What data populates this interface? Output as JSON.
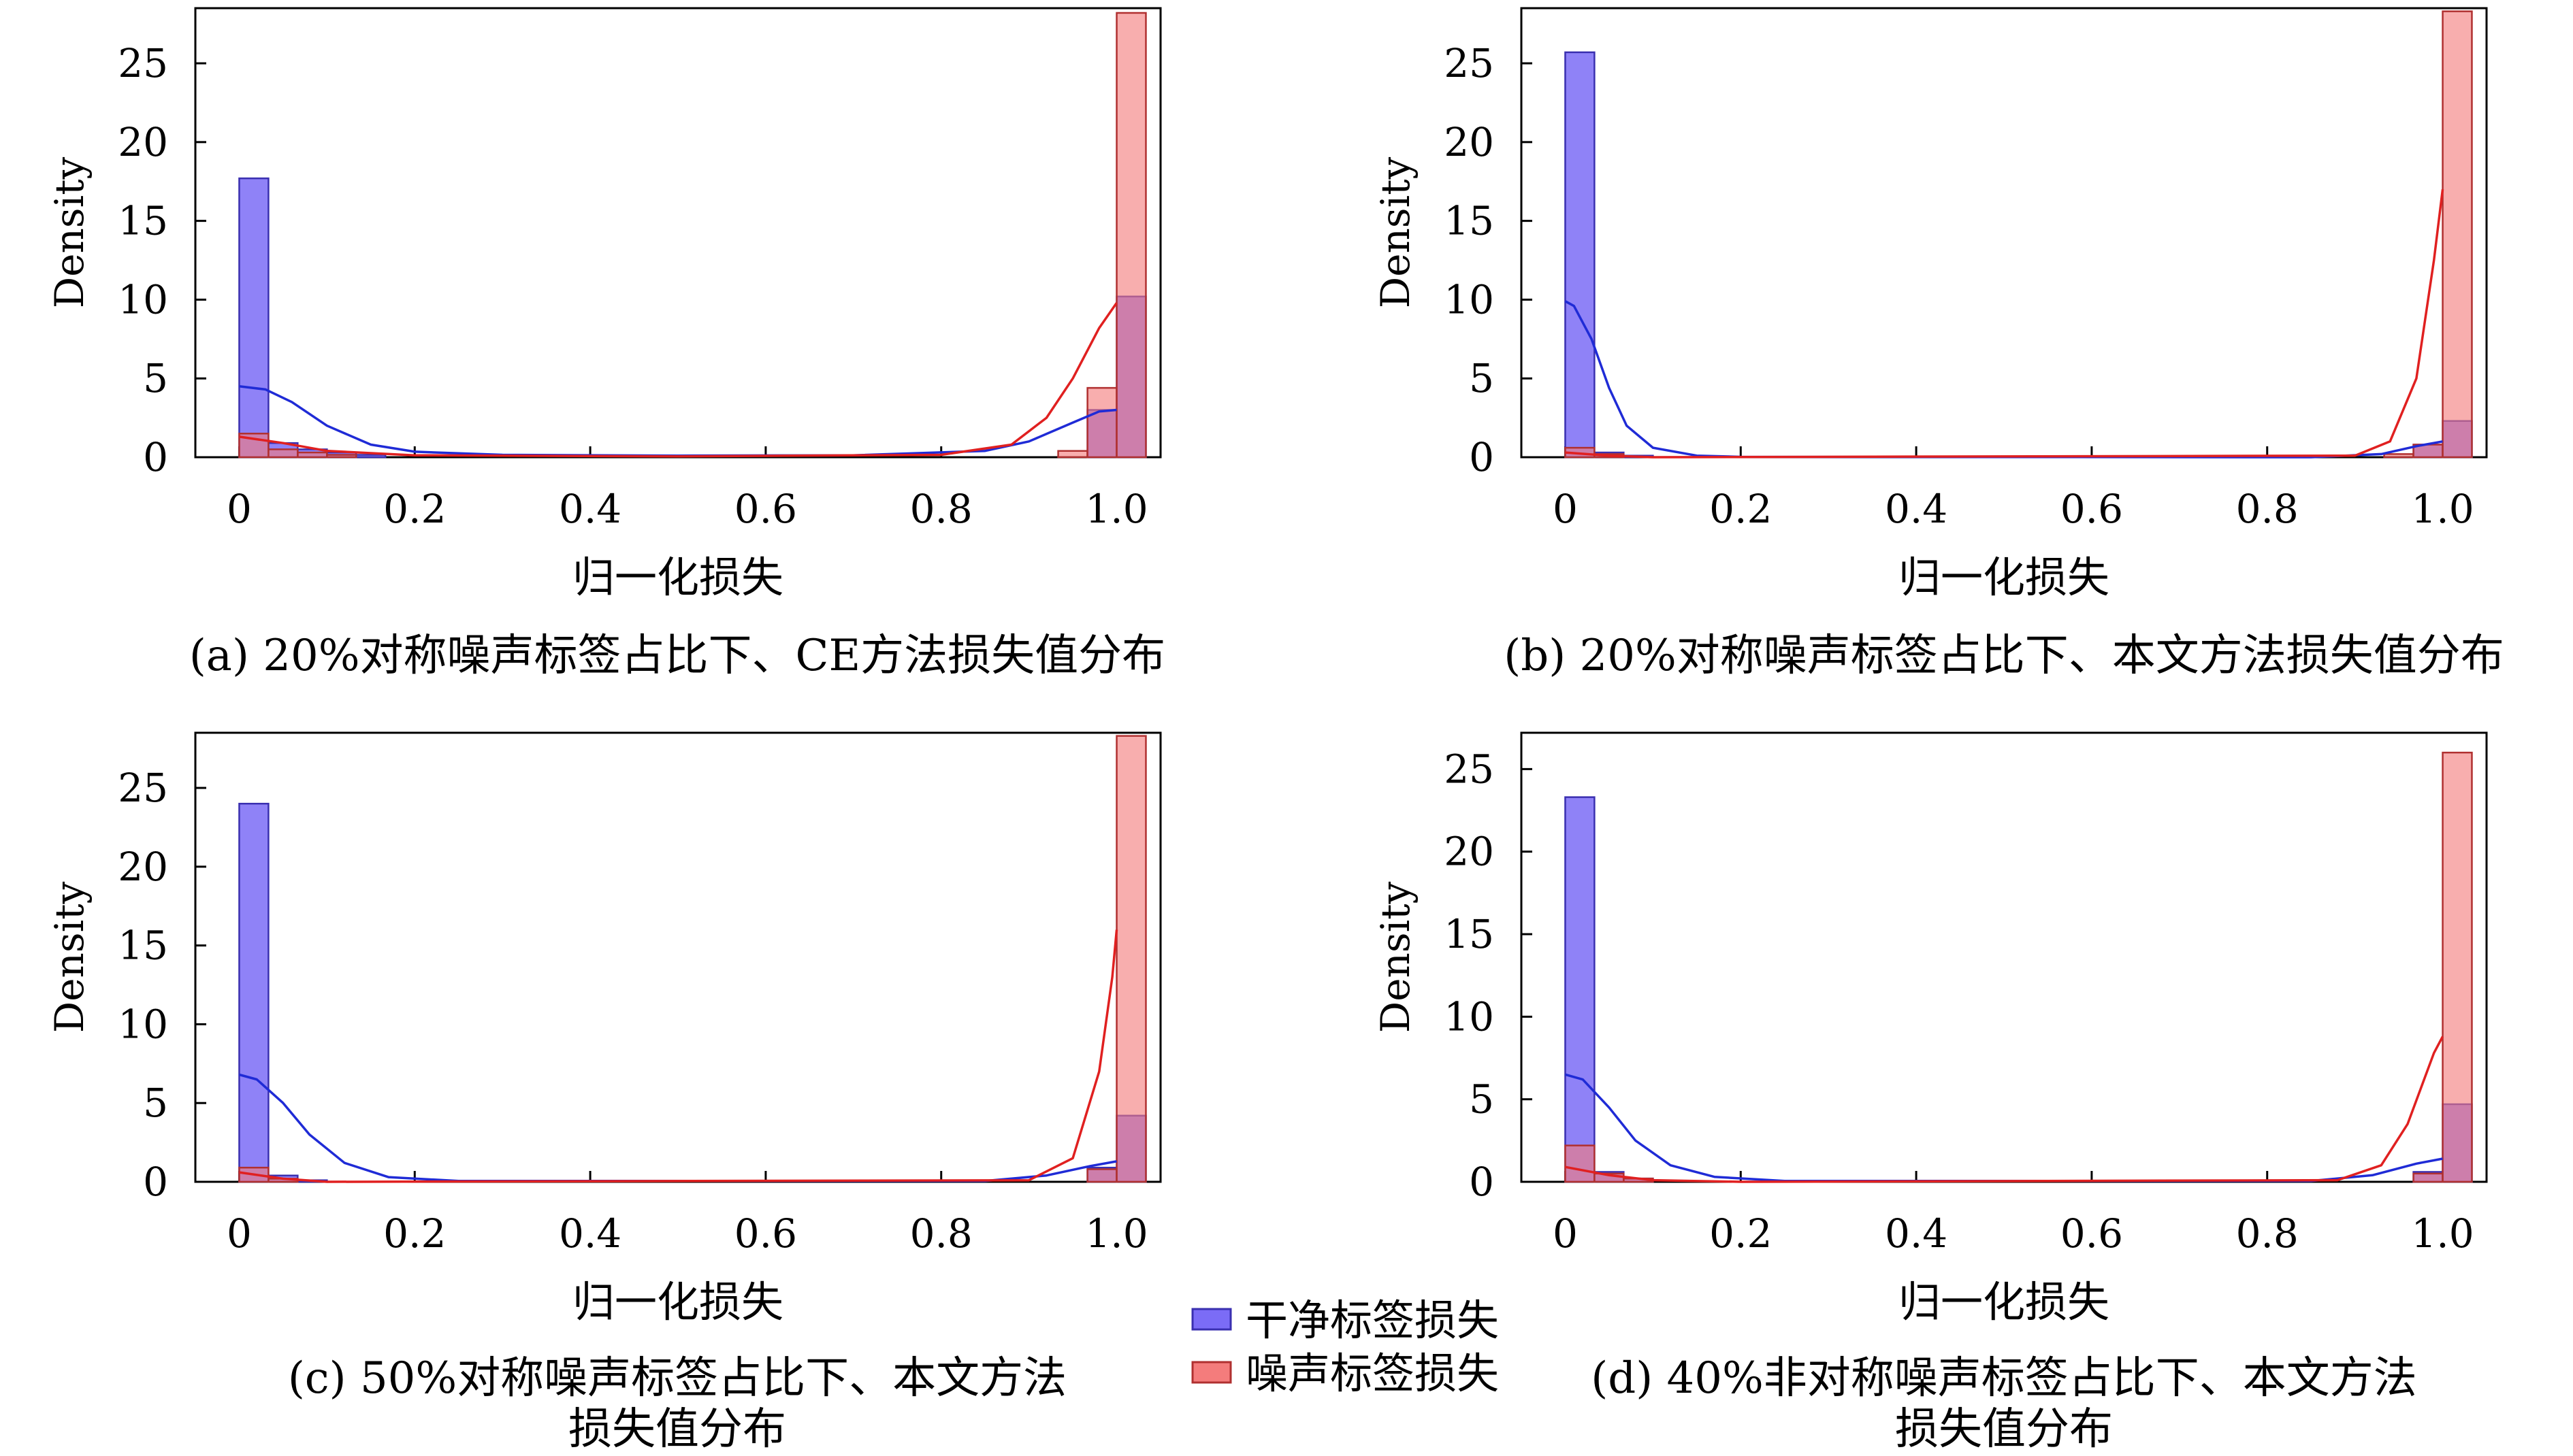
{
  "legend": {
    "placement": "bottom-center",
    "items": [
      {
        "label": "干净标签损失",
        "color": "#7b6cf6"
      },
      {
        "label": "噪声标签损失",
        "color": "#f47c7c"
      }
    ]
  },
  "colors": {
    "clean_fill": "#7b6cf6",
    "clean_edge": "#3a2fb0",
    "clean_kde": "#1f2bd6",
    "noisy_fill": "#f47c7c",
    "noisy_edge": "#b03030",
    "noisy_kde": "#e02020",
    "overlap_fill": "#a03a6a"
  },
  "chart_data": [
    {
      "type": "bar",
      "subtype": "histogram-with-kde",
      "panel": "a",
      "caption_lines": [
        "(a) 20%对称噪声标签占比下、CE方法损失值分布"
      ],
      "xlabel": "归一化损失",
      "ylabel": "Density",
      "xlim": [
        -0.05,
        1.05
      ],
      "ylim": [
        0,
        28.5
      ],
      "xticks": [
        0,
        0.2,
        0.4,
        0.6,
        0.8,
        1.0
      ],
      "xtick_labels": [
        "0",
        "0.2",
        "0.4",
        "0.6",
        "0.8",
        "1.0"
      ],
      "yticks": [
        0,
        5,
        10,
        15,
        20,
        25
      ],
      "ytick_labels": [
        "0",
        "5",
        "10",
        "15",
        "20",
        "25"
      ],
      "bin_width": 0.0333,
      "series": [
        {
          "name": "干净标签损失",
          "kde_color": "#1f2bd6",
          "bins": [
            [
              0.0,
              17.7
            ],
            [
              0.0333,
              0.9
            ],
            [
              0.0667,
              0.5
            ],
            [
              0.1,
              0.3
            ],
            [
              0.1333,
              0.15
            ],
            [
              0.9667,
              3.0
            ],
            [
              1.0,
              10.2
            ]
          ],
          "kde": [
            [
              0,
              4.5
            ],
            [
              0.03,
              4.3
            ],
            [
              0.06,
              3.5
            ],
            [
              0.1,
              2.0
            ],
            [
              0.15,
              0.8
            ],
            [
              0.2,
              0.35
            ],
            [
              0.3,
              0.15
            ],
            [
              0.5,
              0.1
            ],
            [
              0.7,
              0.12
            ],
            [
              0.85,
              0.4
            ],
            [
              0.9,
              1.0
            ],
            [
              0.95,
              2.2
            ],
            [
              0.98,
              2.9
            ],
            [
              1.0,
              3.0
            ]
          ]
        },
        {
          "name": "噪声标签损失",
          "kde_color": "#e02020",
          "bins": [
            [
              0.0,
              1.5
            ],
            [
              0.0333,
              0.5
            ],
            [
              0.0667,
              0.3
            ],
            [
              0.1,
              0.15
            ],
            [
              0.9333,
              0.4
            ],
            [
              0.9667,
              4.4
            ],
            [
              1.0,
              28.2
            ]
          ],
          "kde": [
            [
              0,
              1.3
            ],
            [
              0.05,
              0.9
            ],
            [
              0.1,
              0.4
            ],
            [
              0.2,
              0.12
            ],
            [
              0.5,
              0.05
            ],
            [
              0.8,
              0.15
            ],
            [
              0.88,
              0.8
            ],
            [
              0.92,
              2.5
            ],
            [
              0.95,
              5.0
            ],
            [
              0.98,
              8.2
            ],
            [
              1.0,
              9.8
            ]
          ]
        }
      ]
    },
    {
      "type": "bar",
      "subtype": "histogram-with-kde",
      "panel": "b",
      "caption_lines": [
        "(b) 20%对称噪声标签占比下、本文方法损失值分布"
      ],
      "xlabel": "归一化损失",
      "ylabel": "Density",
      "xlim": [
        -0.05,
        1.05
      ],
      "ylim": [
        0,
        28.5
      ],
      "xticks": [
        0,
        0.2,
        0.4,
        0.6,
        0.8,
        1.0
      ],
      "xtick_labels": [
        "0",
        "0.2",
        "0.4",
        "0.6",
        "0.8",
        "1.0"
      ],
      "yticks": [
        0,
        5,
        10,
        15,
        20,
        25
      ],
      "ytick_labels": [
        "0",
        "5",
        "10",
        "15",
        "20",
        "25"
      ],
      "bin_width": 0.0333,
      "series": [
        {
          "name": "干净标签损失",
          "kde_color": "#1f2bd6",
          "bins": [
            [
              0.0,
              25.7
            ],
            [
              0.0333,
              0.3
            ],
            [
              0.0667,
              0.1
            ],
            [
              0.9667,
              0.8
            ],
            [
              1.0,
              2.3
            ]
          ],
          "kde": [
            [
              0,
              9.9
            ],
            [
              0.01,
              9.6
            ],
            [
              0.03,
              7.5
            ],
            [
              0.05,
              4.4
            ],
            [
              0.07,
              2.0
            ],
            [
              0.1,
              0.6
            ],
            [
              0.15,
              0.1
            ],
            [
              0.2,
              0.02
            ],
            [
              0.85,
              0.0
            ],
            [
              0.93,
              0.2
            ],
            [
              0.97,
              0.7
            ],
            [
              1.0,
              1.0
            ]
          ]
        },
        {
          "name": "噪声标签损失",
          "kde_color": "#e02020",
          "bins": [
            [
              0.0,
              0.6
            ],
            [
              0.0333,
              0.2
            ],
            [
              0.9333,
              0.2
            ],
            [
              0.9667,
              0.8
            ],
            [
              1.0,
              28.3
            ]
          ],
          "kde": [
            [
              0,
              0.3
            ],
            [
              0.05,
              0.1
            ],
            [
              0.1,
              0.0
            ],
            [
              0.9,
              0.1
            ],
            [
              0.94,
              1.0
            ],
            [
              0.97,
              5.0
            ],
            [
              0.99,
              12.5
            ],
            [
              1.0,
              17.0
            ]
          ]
        }
      ]
    },
    {
      "type": "bar",
      "subtype": "histogram-with-kde",
      "panel": "c",
      "caption_lines": [
        "(c) 50%对称噪声标签占比下、本文方法",
        "损失值分布"
      ],
      "xlabel": "归一化损失",
      "ylabel": "Density",
      "xlim": [
        -0.05,
        1.05
      ],
      "ylim": [
        0,
        28.5
      ],
      "xticks": [
        0,
        0.2,
        0.4,
        0.6,
        0.8,
        1.0
      ],
      "xtick_labels": [
        "0",
        "0.2",
        "0.4",
        "0.6",
        "0.8",
        "1.0"
      ],
      "yticks": [
        0,
        5,
        10,
        15,
        20,
        25
      ],
      "ytick_labels": [
        "0",
        "5",
        "10",
        "15",
        "20",
        "25"
      ],
      "bin_width": 0.0333,
      "series": [
        {
          "name": "干净标签损失",
          "kde_color": "#1f2bd6",
          "bins": [
            [
              0.0,
              24.0
            ],
            [
              0.0333,
              0.4
            ],
            [
              0.0667,
              0.1
            ],
            [
              0.9667,
              0.9
            ],
            [
              1.0,
              4.2
            ]
          ],
          "kde": [
            [
              0,
              6.8
            ],
            [
              0.02,
              6.5
            ],
            [
              0.05,
              5.0
            ],
            [
              0.08,
              3.0
            ],
            [
              0.12,
              1.2
            ],
            [
              0.17,
              0.3
            ],
            [
              0.25,
              0.05
            ],
            [
              0.85,
              0.05
            ],
            [
              0.92,
              0.4
            ],
            [
              0.97,
              1.0
            ],
            [
              1.0,
              1.3
            ]
          ]
        },
        {
          "name": "噪声标签损失",
          "kde_color": "#e02020",
          "bins": [
            [
              0.0,
              0.9
            ],
            [
              0.0333,
              0.2
            ],
            [
              0.9667,
              0.8
            ],
            [
              1.0,
              28.3
            ]
          ],
          "kde": [
            [
              0,
              0.6
            ],
            [
              0.05,
              0.2
            ],
            [
              0.1,
              0.0
            ],
            [
              0.9,
              0.1
            ],
            [
              0.95,
              1.5
            ],
            [
              0.98,
              7.0
            ],
            [
              0.995,
              13.0
            ],
            [
              1.0,
              16.0
            ]
          ]
        }
      ]
    },
    {
      "type": "bar",
      "subtype": "histogram-with-kde",
      "panel": "d",
      "caption_lines": [
        "(d) 40%非对称噪声标签占比下、本文方法",
        "损失值分布"
      ],
      "xlabel": "归一化损失",
      "ylabel": "Density",
      "xlim": [
        -0.05,
        1.05
      ],
      "ylim": [
        0,
        27.2
      ],
      "xticks": [
        0,
        0.2,
        0.4,
        0.6,
        0.8,
        1.0
      ],
      "xtick_labels": [
        "0",
        "0.2",
        "0.4",
        "0.6",
        "0.8",
        "1.0"
      ],
      "yticks": [
        0,
        5,
        10,
        15,
        20,
        25
      ],
      "ytick_labels": [
        "0",
        "5",
        "10",
        "15",
        "20",
        "25"
      ],
      "bin_width": 0.0333,
      "series": [
        {
          "name": "干净标签损失",
          "kde_color": "#1f2bd6",
          "bins": [
            [
              0.0,
              23.3
            ],
            [
              0.0333,
              0.6
            ],
            [
              0.0667,
              0.2
            ],
            [
              0.9667,
              0.6
            ],
            [
              1.0,
              4.7
            ]
          ],
          "kde": [
            [
              0,
              6.5
            ],
            [
              0.02,
              6.2
            ],
            [
              0.05,
              4.5
            ],
            [
              0.08,
              2.5
            ],
            [
              0.12,
              1.0
            ],
            [
              0.17,
              0.3
            ],
            [
              0.25,
              0.05
            ],
            [
              0.85,
              0.05
            ],
            [
              0.92,
              0.4
            ],
            [
              0.97,
              1.1
            ],
            [
              1.0,
              1.4
            ]
          ]
        },
        {
          "name": "噪声标签损失",
          "kde_color": "#e02020",
          "bins": [
            [
              0.0,
              2.2
            ],
            [
              0.0333,
              0.5
            ],
            [
              0.0667,
              0.2
            ],
            [
              0.9667,
              0.5
            ],
            [
              1.0,
              26.0
            ]
          ],
          "kde": [
            [
              0,
              0.9
            ],
            [
              0.05,
              0.4
            ],
            [
              0.1,
              0.1
            ],
            [
              0.2,
              0.0
            ],
            [
              0.88,
              0.1
            ],
            [
              0.93,
              1.0
            ],
            [
              0.96,
              3.5
            ],
            [
              0.99,
              7.8
            ],
            [
              1.0,
              8.8
            ]
          ]
        }
      ]
    }
  ]
}
